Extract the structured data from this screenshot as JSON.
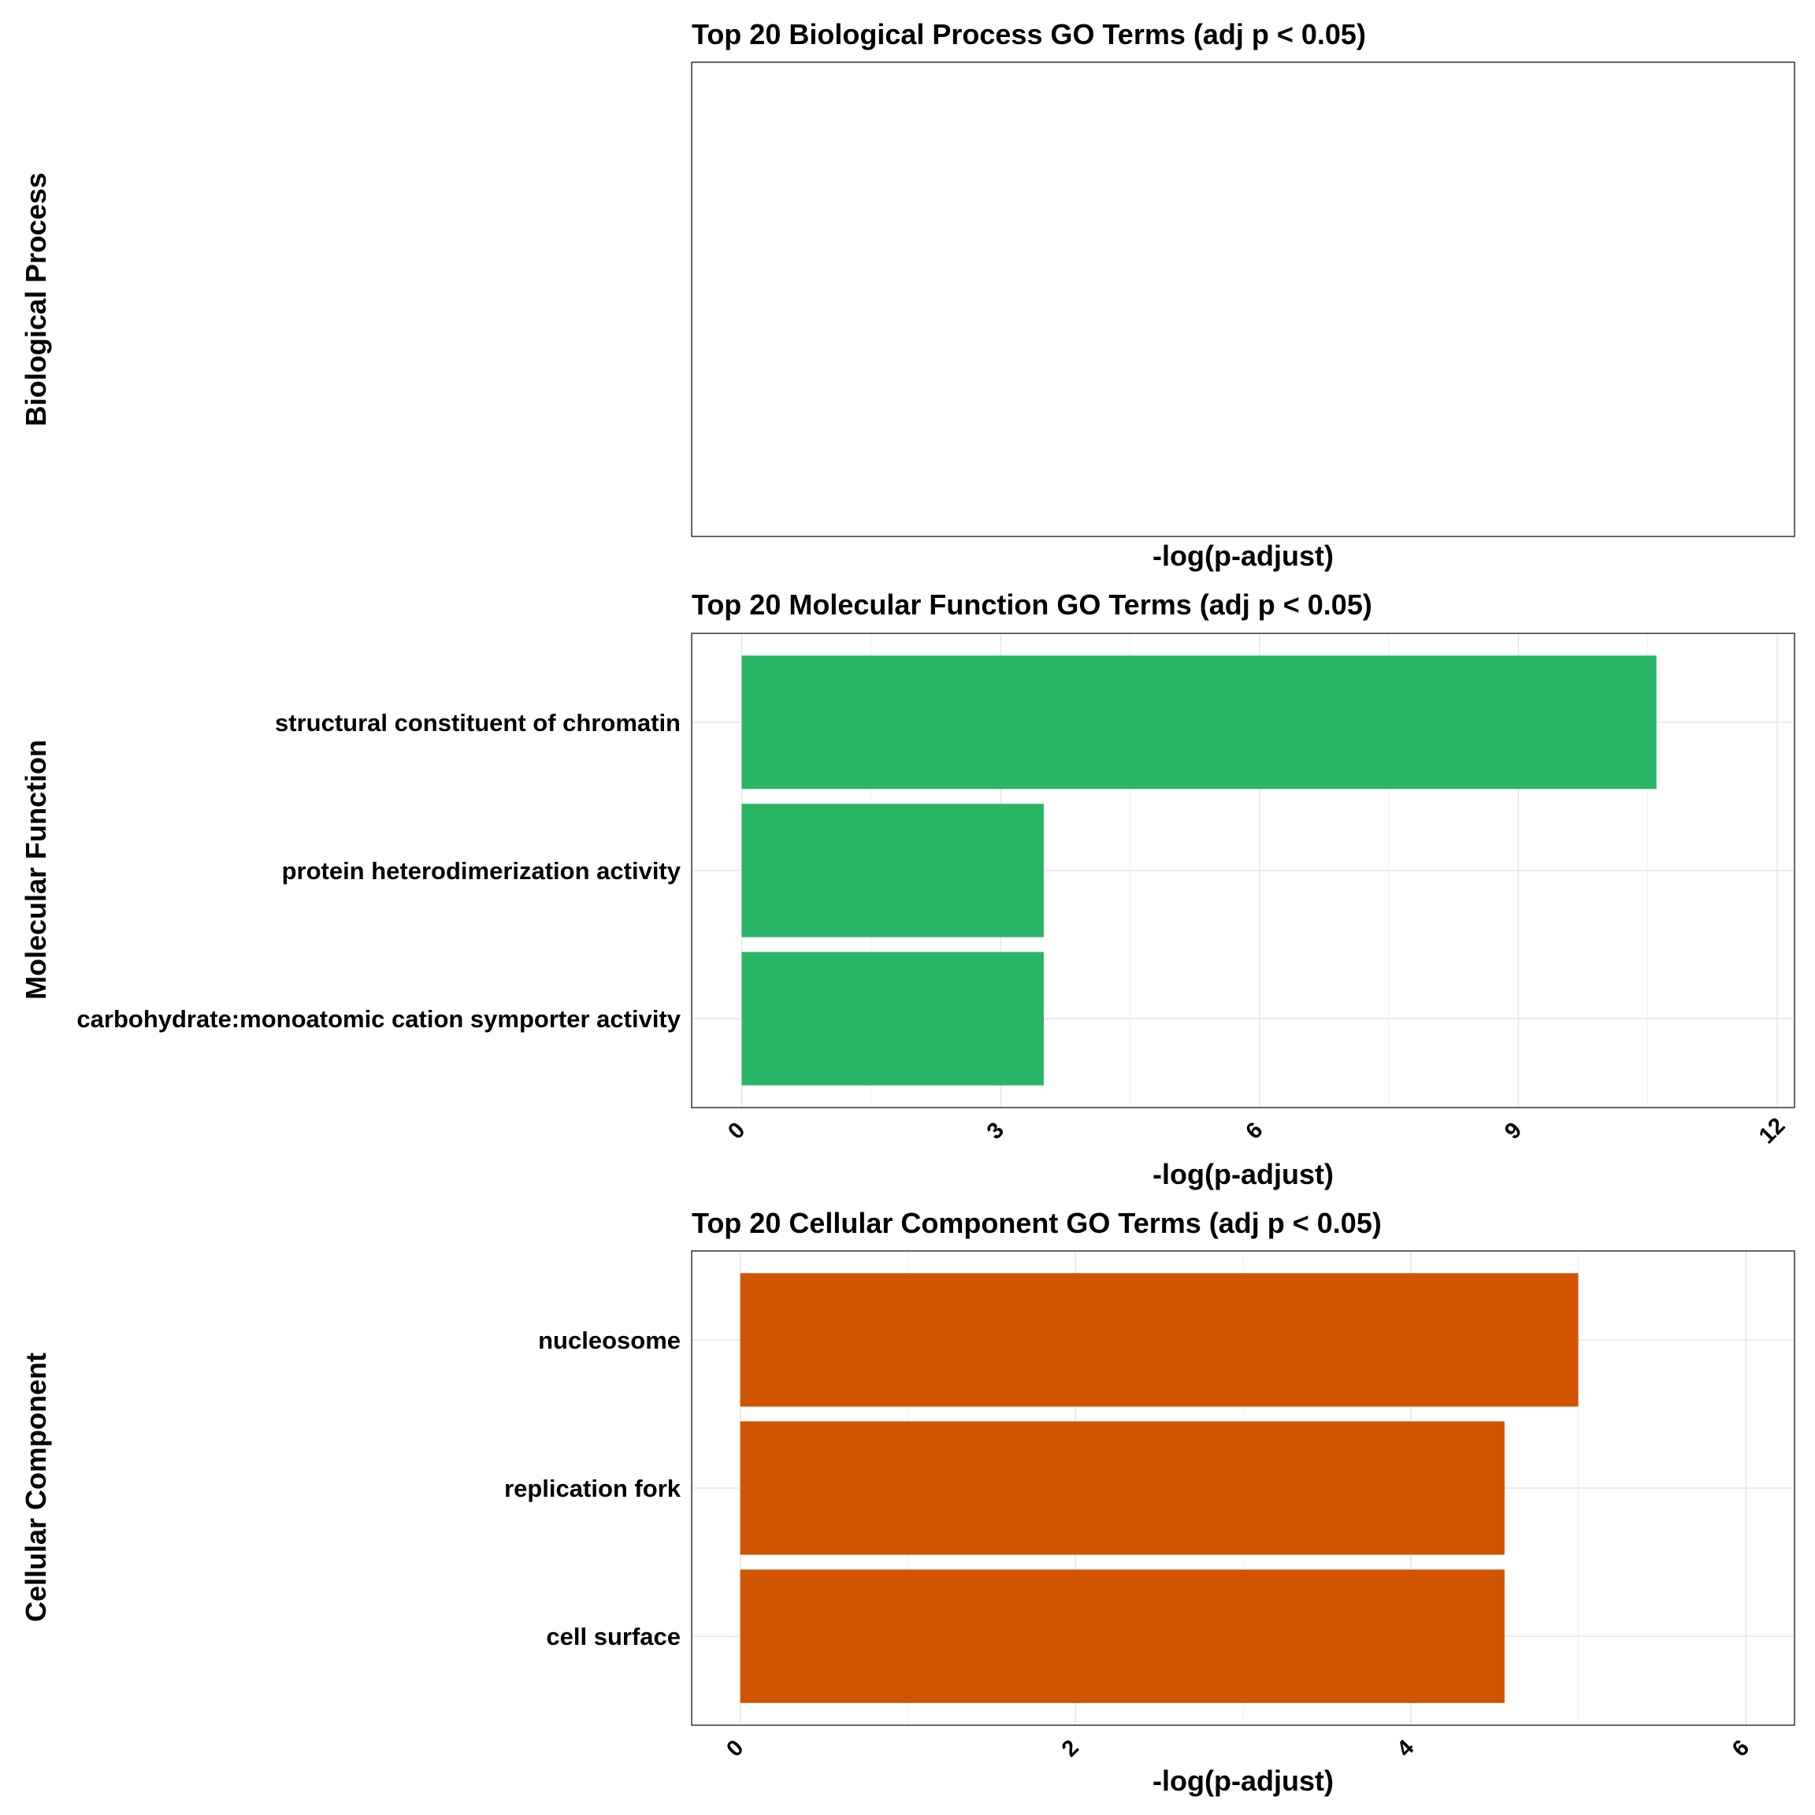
{
  "chart_data": [
    {
      "type": "bar",
      "orientation": "horizontal",
      "title": "Top 20 Biological Process GO Terms (adj p < 0.05)",
      "facet_label": "Biological Process",
      "xlabel": "-log(p-adjust)",
      "categories": [],
      "values": [],
      "color": "#ffffff",
      "ticks": [],
      "xlim": null,
      "grid": true
    },
    {
      "type": "bar",
      "orientation": "horizontal",
      "title": "Top 20 Molecular Function GO Terms (adj p < 0.05)",
      "facet_label": "Molecular Function",
      "xlabel": "-log(p-adjust)",
      "categories": [
        "structural constituent of chromatin",
        "protein heterodimerization activity",
        "carbohydrate:monoatomic cation symporter activity"
      ],
      "values": [
        10.6,
        3.5,
        3.5
      ],
      "color": "#2ab566",
      "ticks": [
        "0",
        "3",
        "6",
        "9",
        "12"
      ],
      "xlim": [
        -0.58,
        12.2
      ],
      "grid": true
    },
    {
      "type": "bar",
      "orientation": "horizontal",
      "title": "Top 20 Cellular Component GO Terms (adj p < 0.05)",
      "facet_label": "Cellular Component",
      "xlabel": "-log(p-adjust)",
      "categories": [
        "nucleosome",
        "replication fork",
        "cell surface"
      ],
      "values": [
        5.0,
        4.56,
        4.56
      ],
      "color": "#d15400",
      "ticks": [
        "0",
        "2",
        "4",
        "6"
      ],
      "xlim": [
        -0.29,
        6.29
      ],
      "grid": true
    }
  ]
}
